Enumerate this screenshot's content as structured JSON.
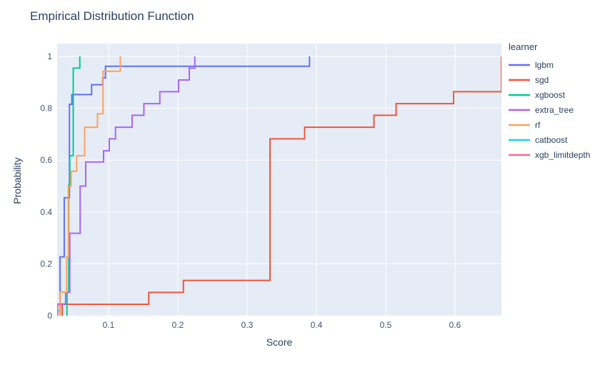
{
  "title": "Empirical Distribution Function",
  "xaxis": {
    "label": "Score",
    "ticks": [
      "0.1",
      "0.2",
      "0.3",
      "0.4",
      "0.5",
      "0.6"
    ],
    "tick_values": [
      0.1,
      0.2,
      0.3,
      0.4,
      0.5,
      0.6
    ]
  },
  "yaxis": {
    "label": "Probability",
    "ticks": [
      "0",
      "0.2",
      "0.4",
      "0.6",
      "0.8",
      "1"
    ],
    "tick_values": [
      0,
      0.2,
      0.4,
      0.6,
      0.8,
      1
    ]
  },
  "legend": {
    "title": "learner"
  },
  "colors": {
    "plot_background": "#E5ECF6",
    "gridline": "#FFFFFF",
    "text": "#2a3f5f",
    "tick_text": "#42526e"
  },
  "chart_data": {
    "type": "line",
    "subtype": "ecdf-step",
    "title": "Empirical Distribution Function",
    "xlabel": "Score",
    "ylabel": "Probability",
    "xlim": [
      0.026,
      0.667
    ],
    "ylim": [
      0,
      1
    ],
    "grid": true,
    "legend_position": "right",
    "legend_title": "learner",
    "series": [
      {
        "name": "lgbm",
        "color": "#636EFA",
        "steps": [
          [
            0.03,
            0.227
          ],
          [
            0.036,
            0.455
          ],
          [
            0.0435,
            0.815
          ],
          [
            0.047,
            0.853
          ],
          [
            0.0755,
            0.891
          ],
          [
            0.0915,
            0.917
          ],
          [
            0.0955,
            0.962
          ],
          [
            0.39,
            1.0
          ]
        ]
      },
      {
        "name": "sgd",
        "color": "#EF553B",
        "steps": [
          [
            0.033,
            0.044
          ],
          [
            0.158,
            0.09
          ],
          [
            0.208,
            0.136
          ],
          [
            0.333,
            0.682
          ],
          [
            0.383,
            0.727
          ],
          [
            0.483,
            0.773
          ],
          [
            0.515,
            0.818
          ],
          [
            0.598,
            0.864
          ],
          [
            0.667,
            1.0
          ]
        ]
      },
      {
        "name": "xgboost",
        "color": "#00CC96",
        "steps": [
          [
            0.04,
            0.09
          ],
          [
            0.0425,
            0.505
          ],
          [
            0.044,
            0.617
          ],
          [
            0.049,
            0.955
          ],
          [
            0.0585,
            1.0
          ]
        ]
      },
      {
        "name": "extra_tree",
        "color": "#AB63FA",
        "steps": [
          [
            0.026,
            0.045
          ],
          [
            0.038,
            0.091
          ],
          [
            0.044,
            0.318
          ],
          [
            0.059,
            0.5
          ],
          [
            0.067,
            0.593
          ],
          [
            0.0928,
            0.636
          ],
          [
            0.101,
            0.682
          ],
          [
            0.11,
            0.727
          ],
          [
            0.134,
            0.773
          ],
          [
            0.151,
            0.818
          ],
          [
            0.174,
            0.864
          ],
          [
            0.201,
            0.909
          ],
          [
            0.2165,
            0.955
          ],
          [
            0.2245,
            1.0
          ]
        ]
      },
      {
        "name": "rf",
        "color": "#FFA15A",
        "steps": [
          [
            0.03,
            0.091
          ],
          [
            0.0395,
            0.227
          ],
          [
            0.042,
            0.5
          ],
          [
            0.046,
            0.557
          ],
          [
            0.054,
            0.617
          ],
          [
            0.0655,
            0.727
          ],
          [
            0.084,
            0.779
          ],
          [
            0.092,
            0.943
          ],
          [
            0.117,
            1.0
          ]
        ]
      },
      {
        "name": "catboost",
        "color": "#19D3F3",
        "steps": [
          [
            0.0265,
            0.02
          ],
          [
            0.029,
            0.02
          ]
        ]
      },
      {
        "name": "xgb_limitdepth",
        "color": "#FF6692",
        "steps": [
          [
            0.0265,
            0.042
          ],
          [
            0.0315,
            0.042
          ]
        ]
      }
    ]
  }
}
